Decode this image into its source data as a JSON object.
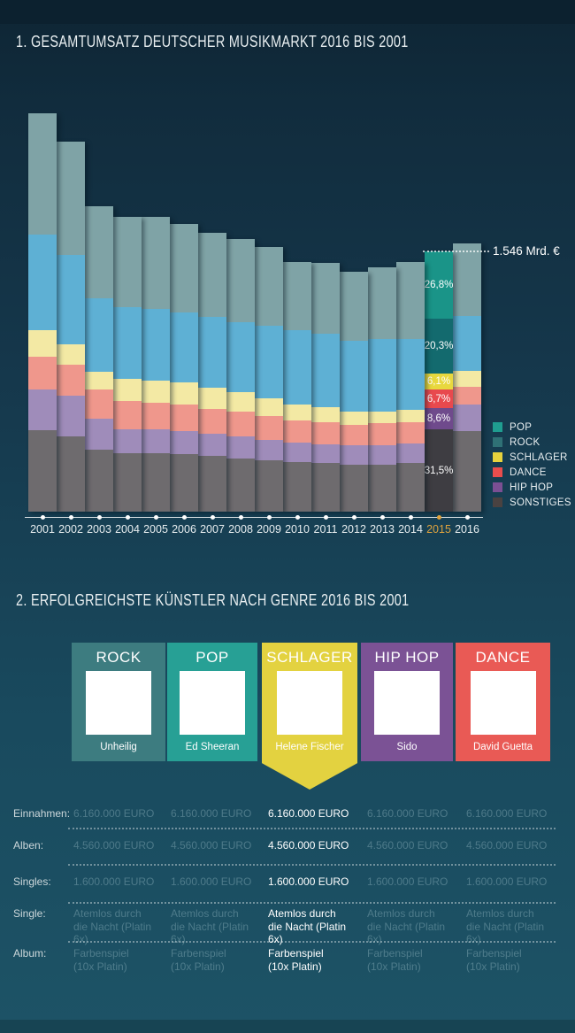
{
  "page": {
    "section1_title": "1. GESAMTUMSATZ DEUTSCHER MUSIKMARKT 2016 BIS 2001",
    "section2_title": "2. ERFOLGREICHSTE KÜNSTLER NACH GENRE 2016 BIS 2001"
  },
  "chart_data": {
    "type": "bar",
    "stacked": true,
    "unit": "relative visual height (px)",
    "categories": [
      "2001",
      "2002",
      "2003",
      "2004",
      "2005",
      "2006",
      "2007",
      "2008",
      "2009",
      "2010",
      "2011",
      "2012",
      "2013",
      "2014",
      "2015",
      "2016"
    ],
    "series": [
      {
        "name": "POP",
        "values": [
          137,
          128,
          104,
          102,
          104,
          100,
          95,
          94,
          89,
          77,
          80,
          78,
          81,
          87,
          76,
          82
        ]
      },
      {
        "name": "ROCK",
        "values": [
          108,
          101,
          83,
          81,
          81,
          79,
          80,
          79,
          82,
          84,
          83,
          80,
          82,
          80,
          62,
          62
        ]
      },
      {
        "name": "SCHLAGER",
        "values": [
          30,
          23,
          20,
          25,
          25,
          25,
          24,
          22,
          20,
          18,
          17,
          15,
          13,
          14,
          18,
          18
        ]
      },
      {
        "name": "DANCE",
        "values": [
          37,
          35,
          33,
          32,
          30,
          30,
          28,
          28,
          27,
          25,
          25,
          23,
          25,
          24,
          21,
          20
        ]
      },
      {
        "name": "HIP HOP",
        "values": [
          46,
          46,
          35,
          27,
          27,
          26,
          25,
          25,
          23,
          22,
          21,
          22,
          22,
          22,
          24,
          30
        ]
      },
      {
        "name": "SONSTIGES",
        "values": [
          92,
          85,
          70,
          66,
          66,
          65,
          63,
          60,
          58,
          56,
          55,
          53,
          53,
          55,
          93,
          91
        ]
      }
    ],
    "highlight_category": "2015",
    "highlight_percentages": [
      "26,8%",
      "20,3%",
      "6,1%",
      "6,7%",
      "8,6%",
      "31,5%"
    ],
    "annotation": "1.546 Mrd. €",
    "legend": [
      "POP",
      "ROCK",
      "SCHLAGER",
      "DANCE",
      "HIP HOP",
      "SONSTIGES"
    ],
    "colors": {
      "muted": [
        "#7fa3a6",
        "#5eb0d4",
        "#f3e9a4",
        "#ef978c",
        "#9f8cba",
        "#6e6b6e"
      ],
      "highlight": [
        "#1a9488",
        "#136a6e",
        "#e8d83e",
        "#e8494e",
        "#6f4a8c",
        "#3e3d42"
      ],
      "legend": [
        "#1f9d90",
        "#2f7176",
        "#e6d23d",
        "#e84d4d",
        "#7b4f93",
        "#4a4241"
      ],
      "year_highlight": "#dfa33e"
    },
    "axis": {
      "x_tick_style": "dot",
      "grid": false,
      "legend_position": "right"
    }
  },
  "section2": {
    "cards": [
      {
        "genre": "ROCK",
        "artist": "Unheilig",
        "color": "#3d7c80",
        "highlight": false
      },
      {
        "genre": "POP",
        "artist": "Ed Sheeran",
        "color": "#27a095",
        "highlight": false
      },
      {
        "genre": "SCHLAGER",
        "artist": "Helene Fischer",
        "color": "#e3d240",
        "highlight": true
      },
      {
        "genre": "HIP HOP",
        "artist": "Sido",
        "color": "#7b5295",
        "highlight": false
      },
      {
        "genre": "DANCE",
        "artist": "David Guetta",
        "color": "#e95a55",
        "highlight": false
      }
    ],
    "table": {
      "highlight_column": 2,
      "rows": [
        {
          "label": "Einnahmen:",
          "values": [
            "6.160.000 EURO",
            "6.160.000 EURO",
            "6.160.000 EURO",
            "6.160.000 EURO",
            "6.160.000 EURO"
          ]
        },
        {
          "label": "Alben:",
          "values": [
            "4.560.000 EURO",
            "4.560.000 EURO",
            "4.560.000 EURO",
            "4.560.000 EURO",
            "4.560.000 EURO"
          ]
        },
        {
          "label": "Singles:",
          "values": [
            "1.600.000 EURO",
            "1.600.000 EURO",
            "1.600.000 EURO",
            "1.600.000 EURO",
            "1.600.000 EURO"
          ]
        },
        {
          "label": "Single:",
          "values": [
            "Atemlos durch\ndie Nacht (Platin 6x)",
            "Atemlos durch\ndie Nacht (Platin 6x)",
            "Atemlos durch\ndie Nacht (Platin 6x)",
            "Atemlos durch\ndie Nacht (Platin 6x)",
            "Atemlos durch\ndie Nacht (Platin 6x)"
          ]
        },
        {
          "label": "Album:",
          "values": [
            "Farbenspiel\n(10x Platin)",
            "Farbenspiel\n(10x Platin)",
            "Farbenspiel\n(10x Platin)",
            "Farbenspiel\n(10x Platin)",
            "Farbenspiel\n(10x Platin)"
          ]
        }
      ]
    }
  }
}
